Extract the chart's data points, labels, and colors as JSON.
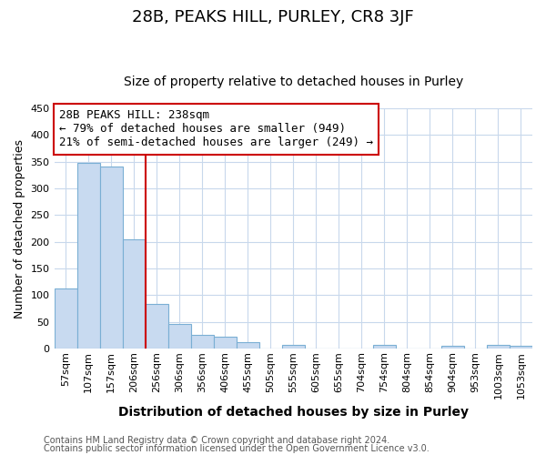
{
  "title": "28B, PEAKS HILL, PURLEY, CR8 3JF",
  "subtitle": "Size of property relative to detached houses in Purley",
  "xlabel": "Distribution of detached houses by size in Purley",
  "ylabel": "Number of detached properties",
  "footer_line1": "Contains HM Land Registry data © Crown copyright and database right 2024.",
  "footer_line2": "Contains public sector information licensed under the Open Government Licence v3.0.",
  "annotation_line1": "28B PEAKS HILL: 238sqm",
  "annotation_line2": "← 79% of detached houses are smaller (949)",
  "annotation_line3": "21% of semi-detached houses are larger (249) →",
  "bar_labels": [
    "57sqm",
    "107sqm",
    "157sqm",
    "206sqm",
    "256sqm",
    "306sqm",
    "356sqm",
    "406sqm",
    "455sqm",
    "505sqm",
    "555sqm",
    "605sqm",
    "655sqm",
    "704sqm",
    "754sqm",
    "804sqm",
    "854sqm",
    "904sqm",
    "953sqm",
    "1003sqm",
    "1053sqm"
  ],
  "bar_values": [
    112,
    348,
    341,
    204,
    84,
    47,
    25,
    22,
    12,
    0,
    7,
    0,
    0,
    0,
    7,
    0,
    0,
    5,
    0,
    7,
    5
  ],
  "bar_color": "#c8daf0",
  "bar_edge_color": "#7aafd4",
  "plot_bg_color": "#ffffff",
  "fig_bg_color": "#ffffff",
  "grid_color": "#c8d8ec",
  "vline_color": "#cc0000",
  "vline_pos": 3.5,
  "ylim": [
    0,
    450
  ],
  "yticks": [
    0,
    50,
    100,
    150,
    200,
    250,
    300,
    350,
    400,
    450
  ],
  "annotation_box_color": "#ffffff",
  "annotation_box_edge": "#cc0000",
  "title_fontsize": 13,
  "subtitle_fontsize": 10,
  "xlabel_fontsize": 10,
  "ylabel_fontsize": 9,
  "tick_fontsize": 8,
  "footer_fontsize": 7,
  "annotation_fontsize": 9
}
